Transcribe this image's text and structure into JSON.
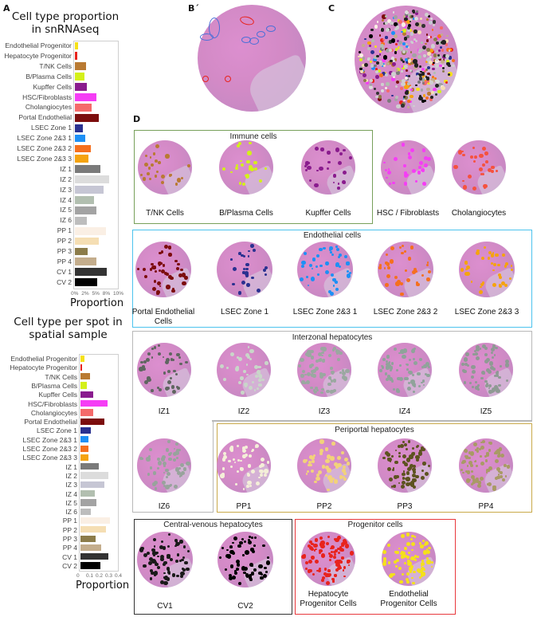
{
  "panels": {
    "a": "A",
    "b": "B´",
    "c": "C",
    "d": "D"
  },
  "chart_data": [
    {
      "type": "bar",
      "orientation": "horizontal",
      "title": "Cell type proportion in snRNAseq",
      "xlabel": "Proportion",
      "ylabel": "",
      "xlim": [
        0,
        10
      ],
      "x_ticks": [
        "0%",
        "2%",
        "5%",
        "8%",
        "10%"
      ],
      "grid": false,
      "legend": "none",
      "categories": [
        "Endothelial Progenitor",
        "Hepatocyte Progenitor",
        "T/NK Cells",
        "B/Plasma Cells",
        "Kupffer Cells",
        "HSC/Fibroblasts",
        "Cholangiocytes",
        "Portal Endothelial",
        "LSEC Zone 1",
        "LSEC Zone 2&3 1",
        "LSEC Zone 2&3 2",
        "LSEC Zone 2&3 3",
        "IZ 1",
        "IZ 2",
        "IZ 3",
        "IZ 4",
        "IZ 5",
        "IZ 6",
        "PP 1",
        "PP 2",
        "PP 3",
        "PP 4",
        "CV 1",
        "CV 2"
      ],
      "values": [
        0.7,
        0.5,
        2.7,
        2.2,
        2.9,
        5.0,
        4.0,
        5.7,
        1.9,
        2.4,
        3.8,
        3.2,
        6.1,
        8.1,
        6.8,
        4.6,
        5.0,
        2.9,
        7.3,
        5.6,
        3.1,
        5.1,
        7.6,
        5.2
      ],
      "unit": "%"
    },
    {
      "type": "bar",
      "orientation": "horizontal",
      "title": "Cell type per spot in spatial sample",
      "xlabel": "Proportion",
      "ylabel": "",
      "xlim": [
        0,
        0.4
      ],
      "x_ticks": [
        "0",
        "0.1",
        "0.2",
        "0.3",
        "0.4"
      ],
      "grid": false,
      "legend": "none",
      "categories": [
        "Endothelial Progenitor",
        "Hepatocyte Progenitor",
        "T/NK Cells",
        "B/Plasma Cells",
        "Kupffer Cells",
        "HSC/Fibroblasts",
        "Cholangiocytes",
        "Portal Endothelial",
        "LSEC Zone 1",
        "LSEC Zone 2&3 1",
        "LSEC Zone 2&3 2",
        "LSEC Zone 2&3 3",
        "IZ 1",
        "IZ 2",
        "IZ 3",
        "IZ 4",
        "IZ 5",
        "IZ 6",
        "PP 1",
        "PP 2",
        "PP 3",
        "PP 4",
        "CV 1",
        "CV 2"
      ],
      "values": [
        0.04,
        0.015,
        0.1,
        0.07,
        0.13,
        0.28,
        0.13,
        0.25,
        0.11,
        0.08,
        0.08,
        0.08,
        0.19,
        0.29,
        0.25,
        0.15,
        0.17,
        0.11,
        0.31,
        0.27,
        0.16,
        0.22,
        0.29,
        0.21
      ]
    }
  ],
  "colors": [
    "#f5e11a",
    "#e8231d",
    "#b97a32",
    "#d4f01a",
    "#8a1c8e",
    "#f53df5",
    "#f56a6a",
    "#7c0d0d",
    "#2a3190",
    "#1e90f5",
    "#f5701e",
    "#f5a30f",
    "#7a7a7a",
    "#dcdcdc",
    "#c6c6d4",
    "#b2bfb0",
    "#a3a3a3",
    "#bdbdbd",
    "#faefe4",
    "#f5deb3",
    "#8c7c4a",
    "#c4ad8c",
    "#333333",
    "#000000"
  ],
  "groups": [
    {
      "title": "Immune cells",
      "color": "#77a05a"
    },
    {
      "title": "Endothelial cells",
      "color": "#4cc3ee"
    },
    {
      "title": "Interzonal hepatocytes",
      "color": "#b8b8b8"
    },
    {
      "title": "Periportal hepatocytes",
      "color": "#c9a94a"
    },
    {
      "title": "Central-venous hepatocytes",
      "color": "#333333"
    },
    {
      "title": "Progenitor cells",
      "color": "#e8383c"
    }
  ],
  "thumbs": [
    {
      "label": "T/NK Cells",
      "color": "#b97a32"
    },
    {
      "label": "B/Plasma Cells",
      "color": "#d4f01a"
    },
    {
      "label": "Kupffer Cells",
      "color": "#8a1c8e"
    },
    {
      "label": "HSC / Fibroblasts",
      "color": "#f53df5"
    },
    {
      "label": "Cholangiocytes",
      "color": "#f5523f"
    },
    {
      "label": "Portal Endothelial Cells",
      "color": "#7c0d0d"
    },
    {
      "label": "LSEC Zone 1",
      "color": "#2a3190"
    },
    {
      "label": "LSEC Zone 2&3 1",
      "color": "#1e90f5"
    },
    {
      "label": "LSEC Zone 2&3 2",
      "color": "#f5701e"
    },
    {
      "label": "LSEC Zone 2&3 3",
      "color": "#f5a30f"
    },
    {
      "label": "IZ1",
      "color": "#5f6660"
    },
    {
      "label": "IZ2",
      "color": "#c9d6c9"
    },
    {
      "label": "IZ3",
      "color": "#9aa8a0"
    },
    {
      "label": "IZ4",
      "color": "#8fa39a"
    },
    {
      "label": "IZ5",
      "color": "#8f9a94"
    },
    {
      "label": "IZ6",
      "color": "#98a39c"
    },
    {
      "label": "PP1",
      "color": "#f4efd8"
    },
    {
      "label": "PP2",
      "color": "#f2d27a"
    },
    {
      "label": "PP3",
      "color": "#5d5320"
    },
    {
      "label": "PP4",
      "color": "#a99a65"
    },
    {
      "label": "CV1",
      "color": "#1a1a1a"
    },
    {
      "label": "CV2",
      "color": "#000000"
    },
    {
      "label": "Hepatocyte Progenitor Cells",
      "color": "#e8231d"
    },
    {
      "label": "Endothelial Progenitor Cells",
      "color": "#f5e11a"
    }
  ]
}
